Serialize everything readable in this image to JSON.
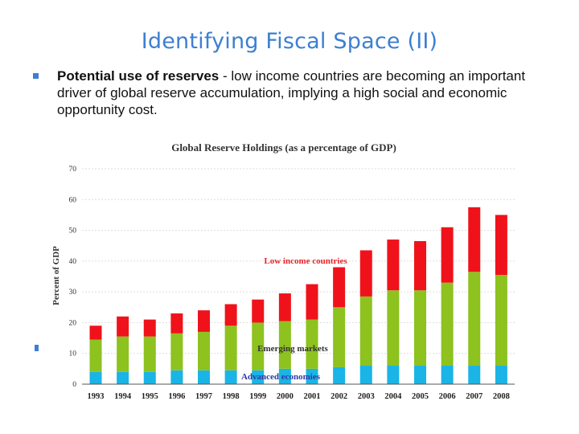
{
  "slide": {
    "title": "Identifying Fiscal Space (II)",
    "bullet": {
      "lead": "Potential use of reserves",
      "text": " - low income countries are becoming an important driver of global reserve accumulation, implying a high social and economic opportunity cost."
    }
  },
  "chart_data": {
    "type": "bar",
    "stacked": true,
    "title": "Global Reserve Holdings (as a percentage of GDP)",
    "ylabel": "Percent of GDP",
    "xlabel": "",
    "ylim": [
      0,
      70
    ],
    "yticks": [
      0,
      10,
      20,
      30,
      40,
      50,
      60,
      70
    ],
    "grid": true,
    "categories": [
      "1993",
      "1994",
      "1995",
      "1996",
      "1997",
      "1998",
      "1999",
      "2000",
      "2001",
      "2002",
      "2003",
      "2004",
      "2005",
      "2006",
      "2007",
      "2008"
    ],
    "series": [
      {
        "name": "Advanced economies",
        "color": "#1ab4e6",
        "values": [
          4,
          4,
          4,
          4.5,
          4.5,
          4.5,
          4.5,
          5,
          5,
          5.5,
          6,
          6,
          6,
          6,
          6,
          6
        ]
      },
      {
        "name": "Emerging markets",
        "color": "#8dc21f",
        "values": [
          10.5,
          11.5,
          11.5,
          12,
          12.5,
          14.5,
          15.5,
          15.5,
          16,
          19.5,
          22.5,
          24.5,
          24.5,
          27,
          30.5,
          29.5
        ]
      },
      {
        "name": "Low income countries",
        "color": "#f0121b",
        "values": [
          4.5,
          6.5,
          5.5,
          6.5,
          7,
          7,
          7.5,
          9,
          11.5,
          13,
          15,
          16.5,
          16,
          18,
          21,
          19.5
        ]
      }
    ]
  }
}
